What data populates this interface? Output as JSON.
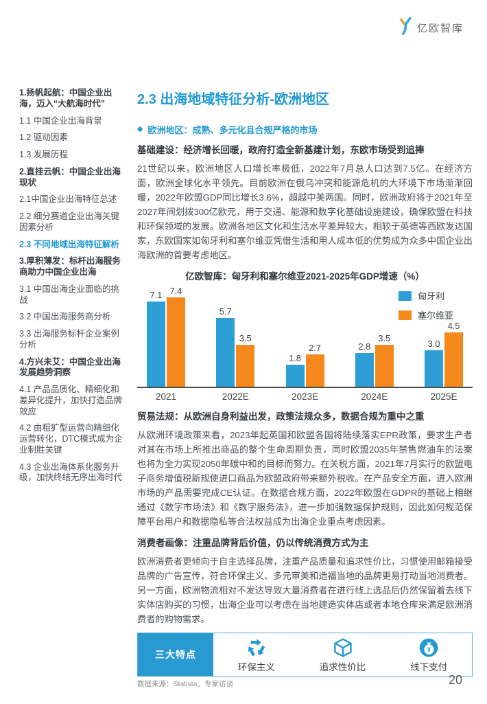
{
  "brand": {
    "logo_text": "亿欧智库"
  },
  "icons": {
    "diamond": "◆"
  },
  "colors": {
    "accent": "#2199D2",
    "bar_blue": "#2E9FD4",
    "bar_orange": "#F5891D",
    "heading_dark": "#33383e"
  },
  "sidebar": {
    "items": [
      {
        "level": 1,
        "active": false,
        "label": "1.扬帆起航：中国企业出海，迈入“大航海时代”"
      },
      {
        "level": 2,
        "active": false,
        "label": "1.1 中国企业出海背景"
      },
      {
        "level": 2,
        "active": false,
        "label": "1.2 驱动因素"
      },
      {
        "level": 2,
        "active": false,
        "label": "1.3 发展历程"
      },
      {
        "level": 1,
        "active": false,
        "label": "2.直挂云帆：中国企业出海现状"
      },
      {
        "level": 2,
        "active": false,
        "label": "2.1中国企业出海特征总述"
      },
      {
        "level": 2,
        "active": false,
        "label": "2.2  细分赛道企业出海关键因素分析"
      },
      {
        "level": 2,
        "active": true,
        "label": "2.3  不同地域出海特征解析"
      },
      {
        "level": 1,
        "active": false,
        "label": "3.厚积薄发：标杆出海服务商助力中国企业出海"
      },
      {
        "level": 2,
        "active": false,
        "label": "3.1  中国出海企业面临的挑战"
      },
      {
        "level": 2,
        "active": false,
        "label": "3.2  中国出海服务商分析"
      },
      {
        "level": 2,
        "active": false,
        "label": "3.3  出海服务标杆企业案例分析"
      },
      {
        "level": 1,
        "active": false,
        "label": "4.方兴未艾：中国企业出海发展趋势洞察"
      },
      {
        "level": 2,
        "active": false,
        "label": "4.1  产品品质化、精细化和差异化提升，加快打造品牌效应"
      },
      {
        "level": 2,
        "active": false,
        "label": "4.2  由粗犷型运营向精细化运营转化，DTC模式成为企业制胜关键"
      },
      {
        "level": 2,
        "active": false,
        "label": "4.3  企业出海体系化服务升级，加快终结无序出海时代"
      }
    ]
  },
  "main": {
    "title": "2.3 出海地域特征分析-欧洲地区",
    "subtitle": "欧洲地区：成熟、多元化且合规严格的市场",
    "s1": {
      "heading": "基础建设：经济增长回暖，政府打造全新基建计划，东欧市场受到追捧",
      "body": "21世纪以来，欧洲地区人口增长率极低，2022年7月总人口达到7.5亿。在经济方面，欧洲全球化水平领先。目前欧洲在俄乌冲突和能源危机的大环境下市场渐渐回暖，2022年欧盟GDP同比增长3.6%，超越中美两国。同时，欧洲政府将于2021年至2027年间划拨300亿欧元，用于交通、能源和数字化基础设施建设，确保欧盟在科技和环保领域的发展。欧洲各地区文化和生活水平差异较大，相较于英德等西欧发达国家，东欧国家如匈牙利和塞尔维亚凭借生活和用人成本低的优势成为众多中国企业出海欧洲的首要考虑地区。"
    },
    "s2": {
      "heading": "贸易法规：从欧洲自身利益出发，政策法规众多，数据合规为重中之重",
      "body": "从欧洲环境政策来看，2023年起英国和欧盟各国将陆续落实EPR政策，要求生产者对其在市场上所推出商品的整个生命周期负责，同时欧盟2035年禁售燃油车的法案也将为全力实现2050年碳中和的目标而努力。在关税方面，2021年7月实行的欧盟电子商务增值税新规使进口商品为欧盟政府带来额外税收。在产品安全方面，进入欧洲市场的产品需要完成CE认证。在数据合规方面，2022年欧盟在GDPR的基础上相继通过《数字市场法》和《数字服务法》，进一步加强数据保护规则，因此如何规范保障平台用户和数据隐私等合法权益成为出海企业重点考虑因素。"
    },
    "s3": {
      "heading": "消费者画像：注重品牌背后价值，仍以传统消费方式为主",
      "body": "欧洲消费者更倾向于自主选择品牌，注重产品质量和追求性价比，习惯使用邮箱接受品牌的广告宣传，符合环保主义、多元审美和造福当地的品牌更易打动当地消费者。另一方面，欧洲物流相对不发达导致大量消费者在进行线上选品后仍然保留着去线下实体店购买的习惯，出海企业可以考虑在当地建造实体店或者本地仓库来满足欧洲消费者的购物需求。"
    },
    "features": {
      "label": "三大特点",
      "items": [
        {
          "icon": "recycle-icon",
          "label": "环保主义"
        },
        {
          "icon": "cube-icon",
          "label": "追求性价比"
        },
        {
          "icon": "moneybag-icon",
          "label": "线下支付"
        }
      ]
    }
  },
  "chart_data": {
    "type": "bar",
    "title": "亿欧智库：匈牙利和塞尔维亚2021-2025年GDP增速（%）",
    "categories": [
      "2021",
      "2022E",
      "2023E",
      "2024E",
      "2025E"
    ],
    "series": [
      {
        "name": "匈牙利",
        "color": "#2E9FD4",
        "values": [
          7.1,
          5.7,
          1.8,
          2.8,
          3.0
        ]
      },
      {
        "name": "塞尔维亚",
        "color": "#F5891D",
        "values": [
          7.4,
          3.5,
          2.7,
          3.5,
          4.5
        ]
      }
    ],
    "xlabel": "",
    "ylabel": "",
    "ylim": [
      0,
      8
    ],
    "grid": false,
    "y_axis_visible": false,
    "value_labels": true,
    "legend_position": "top-right"
  },
  "footer": {
    "source": "数据来源：Statista，专家访谈",
    "page_number": "20"
  }
}
